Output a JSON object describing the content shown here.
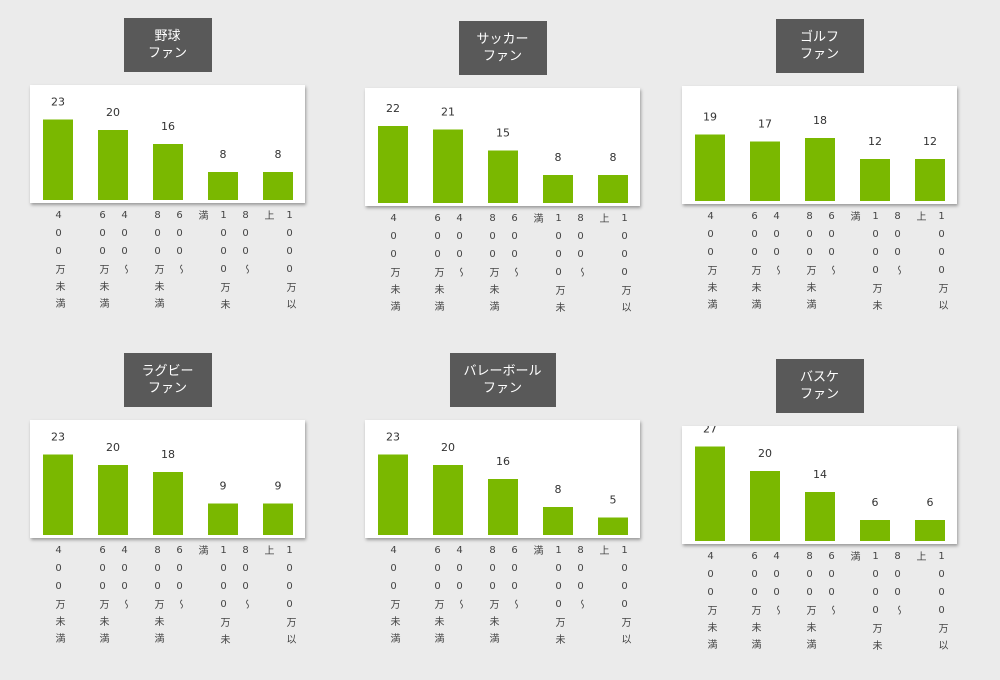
{
  "chart_data": [
    {
      "type": "bar",
      "title": "野球\nファン",
      "categories": [
        "400万未満",
        "400〜600万未満",
        "600〜800万未満",
        "800〜1000万未満",
        "1000万以上"
      ],
      "values": [
        23,
        20,
        16,
        8,
        8
      ],
      "color": "#7ab800",
      "ylim": [
        0,
        30
      ]
    },
    {
      "type": "bar",
      "title": "サッカー\nファン",
      "categories": [
        "400万未満",
        "400〜600万未満",
        "600〜800万未満",
        "800〜1000万未満",
        "1000万以上"
      ],
      "values": [
        22,
        21,
        15,
        8,
        8
      ],
      "color": "#7ab800",
      "ylim": [
        0,
        30
      ]
    },
    {
      "type": "bar",
      "title": "ゴルフ\nファン",
      "categories": [
        "400万未満",
        "400〜600万未満",
        "600〜800万未満",
        "800〜1000万未満",
        "1000万以上"
      ],
      "values": [
        19,
        17,
        18,
        12,
        12
      ],
      "color": "#7ab800",
      "ylim": [
        0,
        30
      ]
    },
    {
      "type": "bar",
      "title": "ラグビー\nファン",
      "categories": [
        "400万未満",
        "400〜600万未満",
        "600〜800万未満",
        "800〜1000万未満",
        "1000万以上"
      ],
      "values": [
        23,
        20,
        18,
        9,
        9
      ],
      "color": "#7ab800",
      "ylim": [
        0,
        30
      ]
    },
    {
      "type": "bar",
      "title": "バレーボール\nファン",
      "categories": [
        "400万未満",
        "400〜600万未満",
        "600〜800万未満",
        "800〜1000万未満",
        "1000万以上"
      ],
      "values": [
        23,
        20,
        16,
        8,
        5
      ],
      "color": "#7ab800",
      "ylim": [
        0,
        30
      ]
    },
    {
      "type": "bar",
      "title": "バスケ\nファン",
      "categories": [
        "400万未満",
        "400〜600万未満",
        "600〜800万未満",
        "800〜1000万未満",
        "1000万以上"
      ],
      "values": [
        27,
        20,
        14,
        6,
        6
      ],
      "color": "#7ab800",
      "ylim": [
        0,
        30
      ]
    }
  ]
}
